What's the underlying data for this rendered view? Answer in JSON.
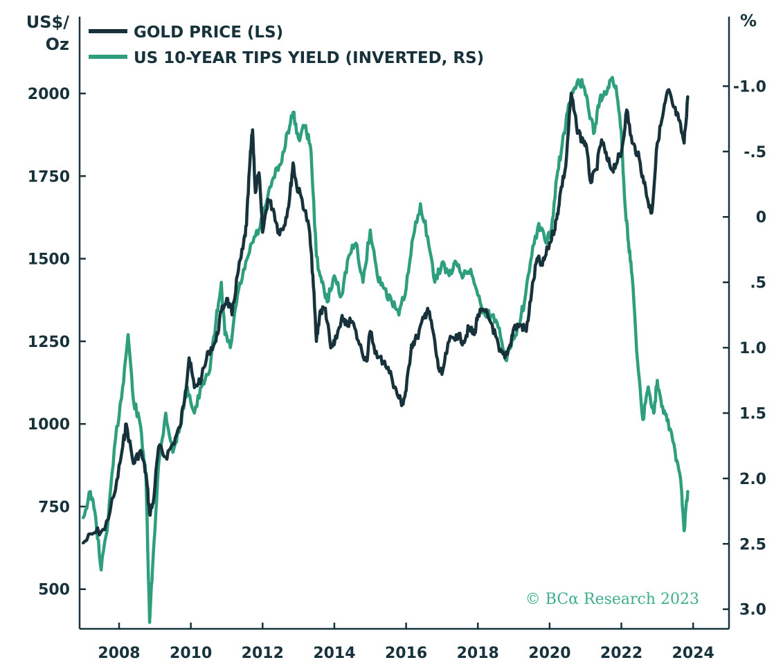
{
  "chart_data": {
    "type": "line",
    "left_unit": "US$/\nOz",
    "right_unit": "%",
    "x_ticks": [
      "2008",
      "2010",
      "2012",
      "2014",
      "2016",
      "2018",
      "2020",
      "2022",
      "2024"
    ],
    "xlim": [
      2006.9,
      2025.0
    ],
    "left_axis": {
      "ylim": [
        380,
        2220
      ],
      "ticks": [
        "2000",
        "1750",
        "1500",
        "1250",
        "1000",
        "750",
        "500"
      ]
    },
    "right_axis": {
      "inverted": true,
      "ylim": [
        3.15,
        -1.5
      ],
      "ticks": [
        "-1.0",
        "-.5",
        "0",
        ".5",
        "1.0",
        "1.5",
        "2.0",
        "2.5",
        "3.0"
      ]
    },
    "legend": {
      "position": "top-left"
    },
    "grid": false,
    "colors": {
      "gold": "#17323a",
      "tips": "#2e9e7c",
      "axis": "#17323a",
      "credit": "#3fae8c"
    },
    "series": [
      {
        "name": "GOLD PRICE (LS)",
        "axis": "left",
        "points": [
          [
            2007.0,
            640
          ],
          [
            2007.3,
            670
          ],
          [
            2007.6,
            680
          ],
          [
            2007.9,
            800
          ],
          [
            2008.1,
            930
          ],
          [
            2008.2,
            1000
          ],
          [
            2008.4,
            880
          ],
          [
            2008.6,
            920
          ],
          [
            2008.75,
            850
          ],
          [
            2008.85,
            730
          ],
          [
            2008.95,
            760
          ],
          [
            2009.1,
            930
          ],
          [
            2009.3,
            900
          ],
          [
            2009.5,
            940
          ],
          [
            2009.7,
            990
          ],
          [
            2009.85,
            1100
          ],
          [
            2009.95,
            1200
          ],
          [
            2010.1,
            1110
          ],
          [
            2010.3,
            1140
          ],
          [
            2010.5,
            1220
          ],
          [
            2010.7,
            1250
          ],
          [
            2010.85,
            1340
          ],
          [
            2011.0,
            1380
          ],
          [
            2011.15,
            1330
          ],
          [
            2011.3,
            1450
          ],
          [
            2011.45,
            1530
          ],
          [
            2011.55,
            1600
          ],
          [
            2011.65,
            1800
          ],
          [
            2011.72,
            1890
          ],
          [
            2011.8,
            1700
          ],
          [
            2011.9,
            1760
          ],
          [
            2012.0,
            1580
          ],
          [
            2012.15,
            1680
          ],
          [
            2012.3,
            1650
          ],
          [
            2012.45,
            1580
          ],
          [
            2012.6,
            1600
          ],
          [
            2012.75,
            1680
          ],
          [
            2012.85,
            1790
          ],
          [
            2012.95,
            1720
          ],
          [
            2013.1,
            1680
          ],
          [
            2013.3,
            1590
          ],
          [
            2013.4,
            1450
          ],
          [
            2013.5,
            1250
          ],
          [
            2013.6,
            1340
          ],
          [
            2013.75,
            1350
          ],
          [
            2013.9,
            1230
          ],
          [
            2014.0,
            1240
          ],
          [
            2014.2,
            1320
          ],
          [
            2014.3,
            1300
          ],
          [
            2014.5,
            1310
          ],
          [
            2014.7,
            1240
          ],
          [
            2014.9,
            1190
          ],
          [
            2015.0,
            1280
          ],
          [
            2015.2,
            1200
          ],
          [
            2015.4,
            1190
          ],
          [
            2015.6,
            1140
          ],
          [
            2015.75,
            1090
          ],
          [
            2015.9,
            1060
          ],
          [
            2016.0,
            1100
          ],
          [
            2016.15,
            1240
          ],
          [
            2016.3,
            1260
          ],
          [
            2016.5,
            1320
          ],
          [
            2016.6,
            1350
          ],
          [
            2016.75,
            1280
          ],
          [
            2016.9,
            1170
          ],
          [
            2017.0,
            1150
          ],
          [
            2017.2,
            1250
          ],
          [
            2017.4,
            1270
          ],
          [
            2017.6,
            1250
          ],
          [
            2017.75,
            1290
          ],
          [
            2017.9,
            1270
          ],
          [
            2018.0,
            1330
          ],
          [
            2018.2,
            1340
          ],
          [
            2018.4,
            1300
          ],
          [
            2018.6,
            1220
          ],
          [
            2018.75,
            1200
          ],
          [
            2018.9,
            1240
          ],
          [
            2019.0,
            1290
          ],
          [
            2019.2,
            1300
          ],
          [
            2019.35,
            1280
          ],
          [
            2019.5,
            1400
          ],
          [
            2019.65,
            1500
          ],
          [
            2019.8,
            1480
          ],
          [
            2019.95,
            1530
          ],
          [
            2020.1,
            1580
          ],
          [
            2020.2,
            1620
          ],
          [
            2020.3,
            1700
          ],
          [
            2020.45,
            1780
          ],
          [
            2020.6,
            2000
          ],
          [
            2020.75,
            1900
          ],
          [
            2020.9,
            1860
          ],
          [
            2021.0,
            1850
          ],
          [
            2021.15,
            1730
          ],
          [
            2021.3,
            1770
          ],
          [
            2021.45,
            1860
          ],
          [
            2021.6,
            1800
          ],
          [
            2021.75,
            1770
          ],
          [
            2021.9,
            1800
          ],
          [
            2022.0,
            1820
          ],
          [
            2022.15,
            1950
          ],
          [
            2022.3,
            1850
          ],
          [
            2022.45,
            1820
          ],
          [
            2022.6,
            1750
          ],
          [
            2022.75,
            1670
          ],
          [
            2022.85,
            1640
          ],
          [
            2023.0,
            1850
          ],
          [
            2023.15,
            1930
          ],
          [
            2023.3,
            2010
          ],
          [
            2023.45,
            1960
          ],
          [
            2023.6,
            1920
          ],
          [
            2023.75,
            1850
          ],
          [
            2023.85,
            1990
          ]
        ]
      },
      {
        "name": "US 10-YEAR TIPS YIELD (INVERTED, RS)",
        "axis": "right",
        "points": [
          [
            2007.0,
            2.3
          ],
          [
            2007.2,
            2.1
          ],
          [
            2007.35,
            2.3
          ],
          [
            2007.5,
            2.7
          ],
          [
            2007.7,
            2.3
          ],
          [
            2007.9,
            1.7
          ],
          [
            2008.1,
            1.3
          ],
          [
            2008.25,
            0.9
          ],
          [
            2008.4,
            1.4
          ],
          [
            2008.6,
            1.6
          ],
          [
            2008.75,
            2.0
          ],
          [
            2008.85,
            3.1
          ],
          [
            2008.95,
            2.6
          ],
          [
            2009.1,
            1.9
          ],
          [
            2009.3,
            1.5
          ],
          [
            2009.5,
            1.8
          ],
          [
            2009.7,
            1.6
          ],
          [
            2009.9,
            1.3
          ],
          [
            2010.1,
            1.5
          ],
          [
            2010.3,
            1.3
          ],
          [
            2010.5,
            1.2
          ],
          [
            2010.7,
            0.8
          ],
          [
            2010.85,
            0.5
          ],
          [
            2010.95,
            0.9
          ],
          [
            2011.1,
            1.0
          ],
          [
            2011.3,
            0.6
          ],
          [
            2011.5,
            0.4
          ],
          [
            2011.7,
            0.2
          ],
          [
            2011.9,
            0.1
          ],
          [
            2012.1,
            -0.1
          ],
          [
            2012.3,
            -0.3
          ],
          [
            2012.5,
            -0.4
          ],
          [
            2012.7,
            -0.65
          ],
          [
            2012.85,
            -0.8
          ],
          [
            2013.0,
            -0.6
          ],
          [
            2013.2,
            -0.7
          ],
          [
            2013.35,
            -0.5
          ],
          [
            2013.5,
            0.3
          ],
          [
            2013.65,
            0.5
          ],
          [
            2013.8,
            0.65
          ],
          [
            2014.0,
            0.45
          ],
          [
            2014.2,
            0.6
          ],
          [
            2014.4,
            0.3
          ],
          [
            2014.6,
            0.2
          ],
          [
            2014.8,
            0.5
          ],
          [
            2015.0,
            0.1
          ],
          [
            2015.2,
            0.45
          ],
          [
            2015.4,
            0.55
          ],
          [
            2015.6,
            0.65
          ],
          [
            2015.8,
            0.75
          ],
          [
            2016.0,
            0.55
          ],
          [
            2016.2,
            0.15
          ],
          [
            2016.4,
            -0.1
          ],
          [
            2016.6,
            0.15
          ],
          [
            2016.8,
            0.5
          ],
          [
            2017.0,
            0.35
          ],
          [
            2017.2,
            0.45
          ],
          [
            2017.4,
            0.35
          ],
          [
            2017.6,
            0.45
          ],
          [
            2017.8,
            0.4
          ],
          [
            2018.0,
            0.6
          ],
          [
            2018.2,
            0.75
          ],
          [
            2018.4,
            0.75
          ],
          [
            2018.6,
            0.85
          ],
          [
            2018.8,
            1.1
          ],
          [
            2018.95,
            0.95
          ],
          [
            2019.1,
            0.85
          ],
          [
            2019.3,
            0.65
          ],
          [
            2019.5,
            0.3
          ],
          [
            2019.7,
            0.05
          ],
          [
            2019.9,
            0.2
          ],
          [
            2020.05,
            0.1
          ],
          [
            2020.2,
            -0.3
          ],
          [
            2020.35,
            -0.55
          ],
          [
            2020.5,
            -0.8
          ],
          [
            2020.65,
            -0.95
          ],
          [
            2020.8,
            -1.05
          ],
          [
            2020.95,
            -1.0
          ],
          [
            2021.1,
            -0.8
          ],
          [
            2021.25,
            -0.65
          ],
          [
            2021.4,
            -0.9
          ],
          [
            2021.55,
            -0.95
          ],
          [
            2021.7,
            -1.05
          ],
          [
            2021.85,
            -1.0
          ],
          [
            2022.0,
            -0.65
          ],
          [
            2022.1,
            -0.1
          ],
          [
            2022.2,
            0.2
          ],
          [
            2022.3,
            0.45
          ],
          [
            2022.45,
            1.1
          ],
          [
            2022.6,
            1.55
          ],
          [
            2022.75,
            1.3
          ],
          [
            2022.9,
            1.5
          ],
          [
            2023.0,
            1.25
          ],
          [
            2023.15,
            1.45
          ],
          [
            2023.3,
            1.55
          ],
          [
            2023.5,
            1.8
          ],
          [
            2023.65,
            2.0
          ],
          [
            2023.75,
            2.4
          ],
          [
            2023.85,
            2.1
          ]
        ]
      }
    ]
  },
  "credit": "© BCα Research 2023"
}
